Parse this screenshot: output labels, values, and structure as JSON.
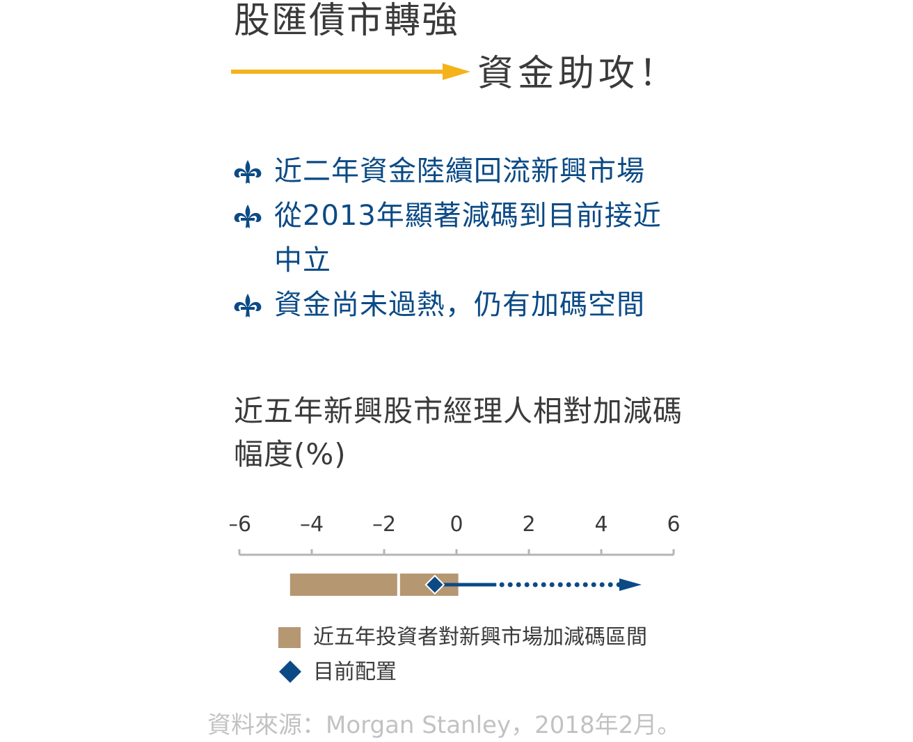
{
  "headline": {
    "line1": "股匯債市轉強",
    "line2": "資金助攻！",
    "arrow_color": "#f5b21a",
    "text_color": "#3a3a3a"
  },
  "bullets": {
    "icon": "fleur-de-lis-icon",
    "color": "#0b4a85",
    "items": [
      "近二年資金陸續回流新興市場",
      "從2013年顯著減碼到目前接近中立",
      "資金尚未過熱，仍有加碼空間"
    ]
  },
  "chart_data": {
    "type": "range",
    "title": "近五年新興股市經理人相對加減碼幅度(%)",
    "xlim": [
      -6,
      6
    ],
    "ticks": [
      -6,
      -4,
      -2,
      0,
      2,
      4,
      6
    ],
    "tick_labels": [
      "–6",
      "–4",
      "–2",
      "0",
      "2",
      "4",
      "6"
    ],
    "range": {
      "name": "近五年投資者對新興市場加減碼區間",
      "min": -4.6,
      "max": 0.05,
      "divider": -1.6,
      "color": "#b59772"
    },
    "current": {
      "name": "目前配置",
      "value": -0.6,
      "color": "#0b4a85"
    },
    "trend_arrow": {
      "from": -0.6,
      "to": 5.0,
      "solid_until": 1.1,
      "style": "dotted",
      "color": "#0b4a85"
    },
    "axis_color": "#b5b5b5"
  },
  "legend": {
    "range_label": "近五年投資者對新興市場加減碼區間",
    "current_label": "目前配置"
  },
  "source": "資料來源：Morgan Stanley，2018年2月。"
}
